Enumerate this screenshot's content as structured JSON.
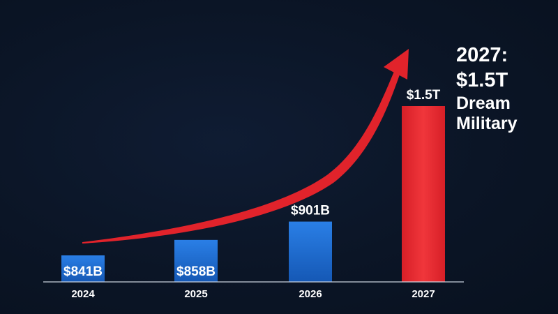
{
  "chart_data": {
    "type": "bar",
    "categories": [
      "2024",
      "2025",
      "2026",
      "2027"
    ],
    "values": [
      841,
      858,
      901,
      1500
    ],
    "unit": "billions USD",
    "data_labels": [
      "$841B",
      "$858B",
      "$901B",
      "$1.5T"
    ],
    "ylim": [
      0,
      1620
    ],
    "grid": false,
    "title": "",
    "xlabel": "",
    "ylabel": "",
    "colors": {
      "base": "#1e6fd2",
      "highlight": "#e8262d",
      "arrow": "#e1232b"
    }
  },
  "callout": {
    "year": "2027:",
    "value": "$1.5T",
    "line1": "Dream",
    "line2": "Military"
  }
}
